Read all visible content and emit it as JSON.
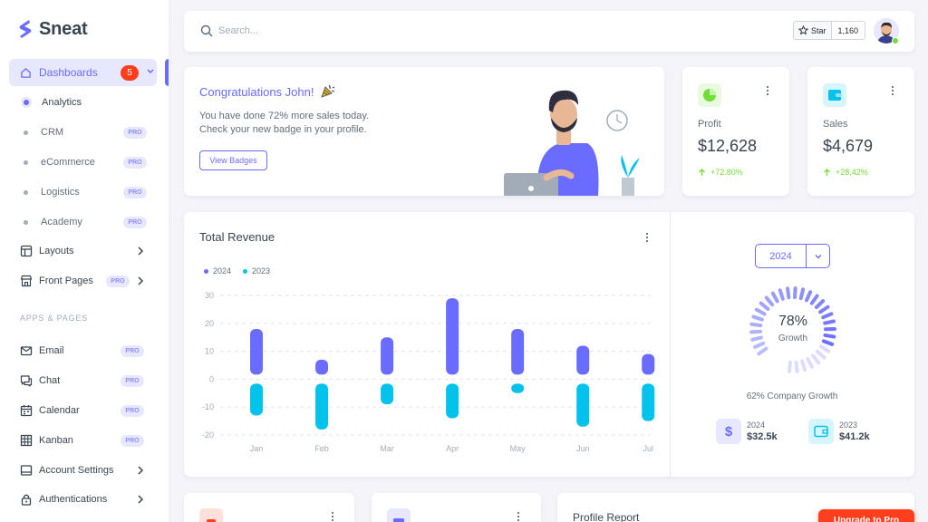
{
  "brand": {
    "name": "Sneat",
    "accent": "#696cff"
  },
  "sidebar": {
    "dashboards": {
      "label": "Dashboards",
      "badge": "5",
      "icon": "home-icon"
    },
    "dashboard_items": [
      {
        "label": "Analytics",
        "pro": "",
        "active": true
      },
      {
        "label": "CRM",
        "pro": "PRO"
      },
      {
        "label": "eCommerce",
        "pro": "PRO"
      },
      {
        "label": "Logistics",
        "pro": "PRO"
      },
      {
        "label": "Academy",
        "pro": "PRO"
      }
    ],
    "layouts": {
      "label": "Layouts",
      "icon": "layout-icon"
    },
    "front_pages": {
      "label": "Front Pages",
      "pro": "PRO",
      "icon": "store-icon"
    },
    "section_label": "APPS & PAGES",
    "apps": [
      {
        "label": "Email",
        "pro": "PRO",
        "icon": "mail-icon"
      },
      {
        "label": "Chat",
        "pro": "PRO",
        "icon": "chat-icon"
      },
      {
        "label": "Calendar",
        "pro": "PRO",
        "icon": "calendar-icon"
      },
      {
        "label": "Kanban",
        "pro": "PRO",
        "icon": "grid-icon"
      },
      {
        "label": "Account Settings",
        "icon": "dock-icon"
      },
      {
        "label": "Authentications",
        "icon": "lock-icon"
      }
    ]
  },
  "navbar": {
    "search_placeholder": "Search...",
    "github": {
      "star_label": "Star",
      "count": "1,160"
    }
  },
  "congrats": {
    "title": "Congratulations John!",
    "line1": "You have done 72% more sales today.",
    "line2": "Check your new badge in your profile.",
    "button": "View Badges"
  },
  "stats": [
    {
      "label": "Profit",
      "value": "$12,628",
      "change": "+72.80%",
      "icon": "pie-chart-icon",
      "color": "#71dd37"
    },
    {
      "label": "Sales",
      "value": "$4,679",
      "change": "+28.42%",
      "icon": "wallet-icon",
      "color": "#03c3ec"
    }
  ],
  "revenue": {
    "title": "Total Revenue",
    "year": "2024",
    "growth_pct": "78%",
    "growth_label": "Growth",
    "company_growth": "62% Company Growth",
    "mini": [
      {
        "year": "2024",
        "value": "$32.5k",
        "icon": "dollar-icon"
      },
      {
        "year": "2023",
        "value": "$41.2k",
        "icon": "wallet-icon"
      }
    ]
  },
  "chart_data": {
    "type": "bar",
    "categories": [
      "Jan",
      "Feb",
      "Mar",
      "Apr",
      "May",
      "Jun",
      "Jul"
    ],
    "series": [
      {
        "name": "2024",
        "color": "#696cff",
        "values": [
          18,
          7,
          15,
          29,
          18,
          12,
          9
        ]
      },
      {
        "name": "2023",
        "color": "#03c3ec",
        "values": [
          -13,
          -18,
          -9,
          -14,
          -5,
          -17,
          -15
        ]
      }
    ],
    "yticks": [
      30,
      20,
      10,
      0,
      -10,
      -20
    ],
    "ylim": [
      -20,
      30
    ],
    "gauge_fraction": 0.78
  },
  "bottom": {
    "profile_title": "Profile Report",
    "upgrade": "Upgrade to Pro"
  }
}
